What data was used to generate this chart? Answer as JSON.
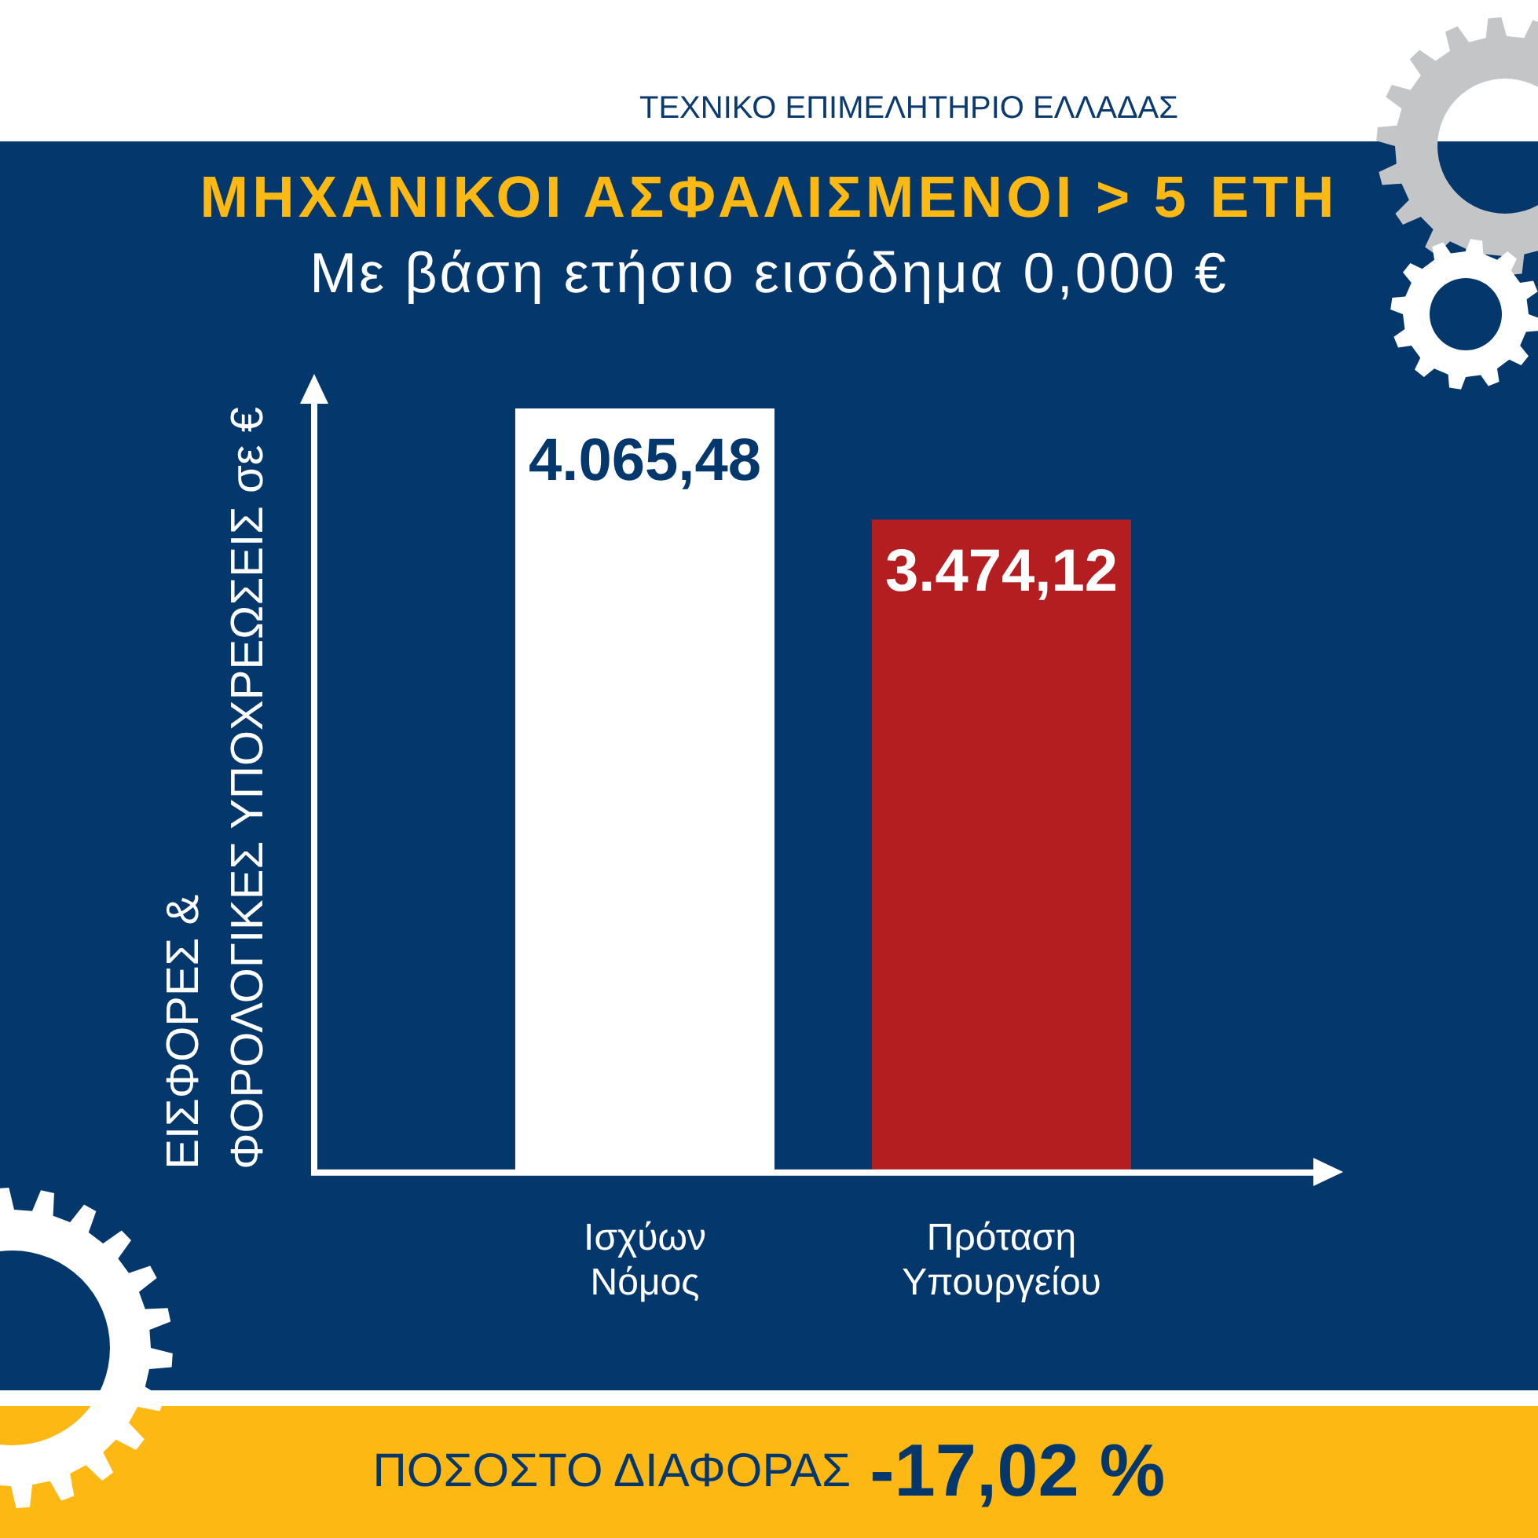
{
  "chart_data": {
    "type": "bar",
    "title": "ΜΗΧΑΝΙΚΟΙ ΑΣΦΑΛΙΣΜΕΝΟΙ > 5 ΕΤΗ",
    "subtitle": "Με βάση ετήσιο εισόδημα 0,000 €",
    "ylabel": "ΕΙΣΦΟΡΕΣ &\nΦΟΡΟΛΟΓΙΚΕΣ ΥΠΟΧΡΕΩΣΕΙΣ σε €",
    "categories": [
      "Ισχύων Νόμος",
      "Πρόταση Υπουργείου"
    ],
    "values": [
      4065.48,
      3474.12
    ],
    "colors": [
      "#ffffff",
      "#b51e20"
    ],
    "value_labels": [
      "4.065,48",
      "3.474,12"
    ],
    "annotations": [
      "ΤΕΧΝΙΚΟ ΕΠΙΜΕΛΗΤΗΡΙΟ ΕΛΛΑΔΑΣ",
      "ΠΟΣΟΣΤΟ ΔΙΑΦΟΡΑΣ",
      "-17,02 %"
    ]
  }
}
